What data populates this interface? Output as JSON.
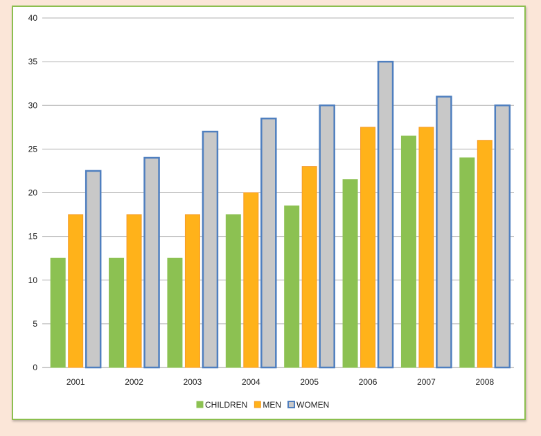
{
  "chart_data": {
    "type": "bar",
    "title": "",
    "xlabel": "",
    "ylabel": "",
    "categories": [
      "2001",
      "2002",
      "2003",
      "2004",
      "2005",
      "2006",
      "2007",
      "2008"
    ],
    "series": [
      {
        "name": "CHILDREN",
        "color": "#8cc152",
        "border": "#8cc152",
        "values": [
          12.5,
          12.5,
          12.5,
          17.5,
          18.5,
          21.5,
          26.5,
          24
        ]
      },
      {
        "name": "MEN",
        "color": "#ffb21a",
        "border": "#f59a2a",
        "values": [
          17.5,
          17.5,
          17.5,
          20,
          23,
          27.5,
          27.5,
          26
        ]
      },
      {
        "name": "WOMEN",
        "color": "#c8c8c8",
        "border": "#4f7fbf",
        "values": [
          22.5,
          24,
          27,
          28.5,
          30,
          35,
          31,
          30
        ]
      }
    ],
    "ylim": [
      0,
      40
    ],
    "yticks": [
      "0",
      "5",
      "10",
      "15",
      "20",
      "25",
      "30",
      "35",
      "40"
    ],
    "grid": true,
    "legend_position": "bottom"
  }
}
